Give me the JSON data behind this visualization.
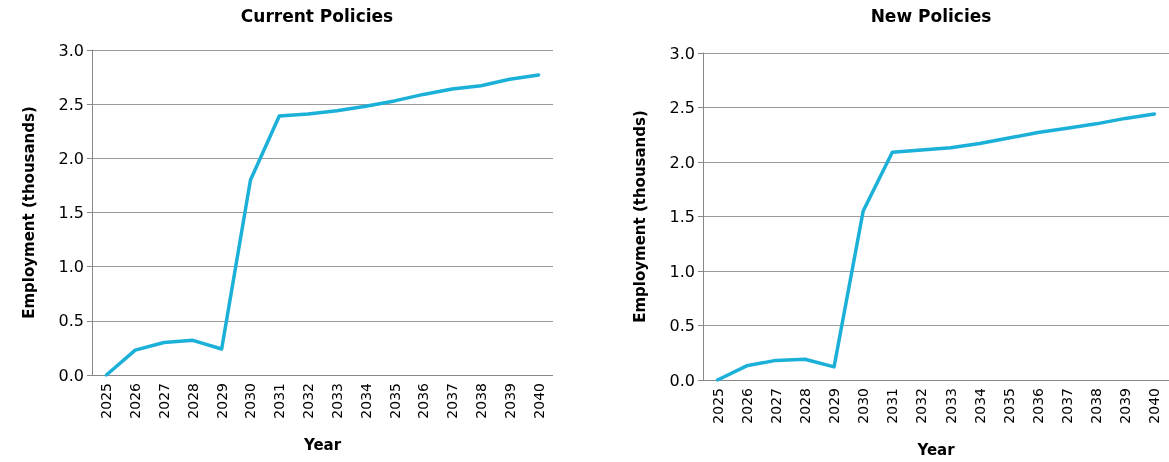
{
  "chart_data": [
    {
      "type": "line",
      "title": "Current Policies",
      "xlabel": "Year",
      "ylabel": "Employment (thousands)",
      "categories": [
        "2025",
        "2026",
        "2027",
        "2028",
        "2029",
        "2030",
        "2031",
        "2032",
        "2033",
        "2034",
        "2035",
        "2036",
        "2037",
        "2038",
        "2039",
        "2040"
      ],
      "series": [
        {
          "color": "#1ab0d8",
          "values": [
            0,
            0.23,
            0.3,
            0.32,
            0.24,
            1.8,
            2.39,
            2.41,
            2.44,
            2.48,
            2.53,
            2.59,
            2.64,
            2.67,
            2.73,
            2.77
          ]
        }
      ],
      "ylim": [
        0,
        3
      ],
      "yticks": [
        {
          "value": 0,
          "label": "0.0"
        },
        {
          "value": 0.5,
          "label": "0.5"
        },
        {
          "value": 1,
          "label": "1.0"
        },
        {
          "value": 1.5,
          "label": "1.5"
        },
        {
          "value": 2,
          "label": "2.0"
        },
        {
          "value": 2.5,
          "label": "2.5"
        },
        {
          "value": 3,
          "label": "3.0"
        }
      ],
      "grid": "y",
      "marker": "none",
      "line_style": "solid"
    },
    {
      "type": "line",
      "title": "New Policies",
      "xlabel": "Year",
      "ylabel": "Employment (thousands)",
      "categories": [
        "2025",
        "2026",
        "2027",
        "2028",
        "2029",
        "2030",
        "2031",
        "2032",
        "2033",
        "2034",
        "2035",
        "2036",
        "2037",
        "2038",
        "2039",
        "2040"
      ],
      "series": [
        {
          "color": "#1ab0d8",
          "values": [
            0,
            0.13,
            0.18,
            0.19,
            0.12,
            1.55,
            2.09,
            2.11,
            2.13,
            2.17,
            2.22,
            2.27,
            2.31,
            2.35,
            2.4,
            2.44
          ]
        }
      ],
      "ylim": [
        0,
        3
      ],
      "yticks": [
        {
          "value": 0,
          "label": "0.0"
        },
        {
          "value": 0.5,
          "label": "0.5"
        },
        {
          "value": 1,
          "label": "1.0"
        },
        {
          "value": 1.5,
          "label": "1.5"
        },
        {
          "value": 2,
          "label": "2.0"
        },
        {
          "value": 2.5,
          "label": "2.5"
        },
        {
          "value": 3,
          "label": "3.0"
        }
      ],
      "grid": "y",
      "marker": "none",
      "line_style": "solid"
    }
  ]
}
